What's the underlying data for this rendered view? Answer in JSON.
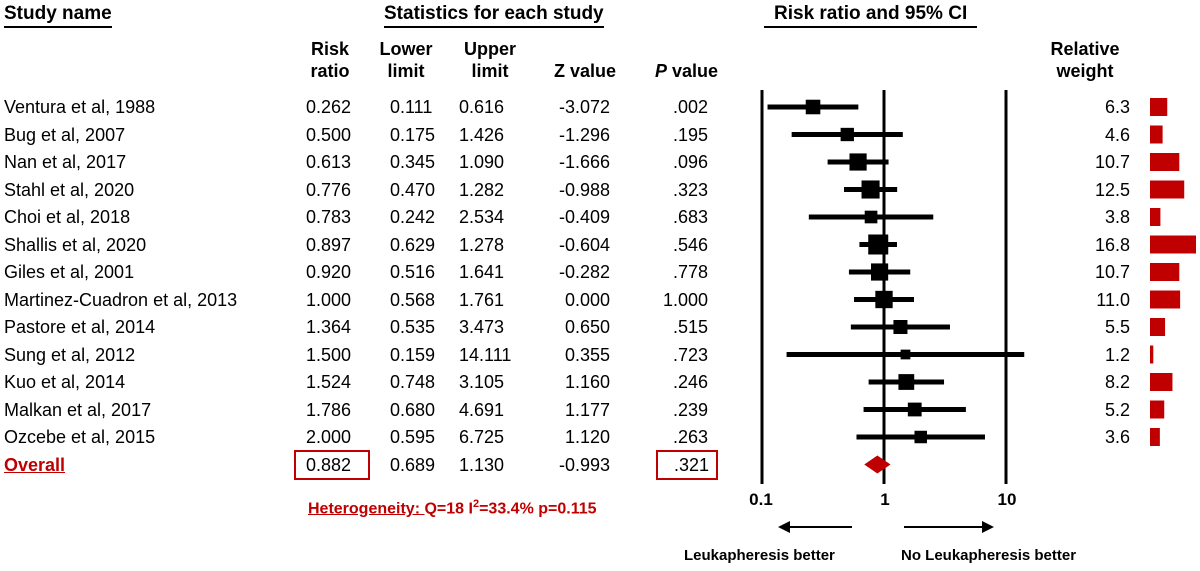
{
  "headers": {
    "study_name": "Study name",
    "statistics": "Statistics for each study",
    "forest": "Risk ratio and 95% CI",
    "rr": [
      "Risk",
      "ratio"
    ],
    "lower": [
      "Lower",
      "limit"
    ],
    "upper": [
      "Upper",
      "limit"
    ],
    "z": "Z value",
    "p": "P value",
    "weight": [
      "Relative",
      "weight"
    ]
  },
  "heterogeneity": {
    "prefix": "Heterogeneity: ",
    "q": "Q=18 I",
    "sup": "2",
    "rest": "=33.4% p=0.115"
  },
  "arrows": {
    "left": "Leukapheresis better",
    "right": "No Leukapheresis better"
  },
  "colors": {
    "overall": "#c00000",
    "weight_bar": "#c00000",
    "study_marker": "#000000"
  },
  "chart_data": {
    "type": "forest",
    "x_scale": "log",
    "xlim": [
      0.1,
      10
    ],
    "x_ticks": [
      "0.1",
      "1",
      "10"
    ],
    "reference_line": 1,
    "studies": [
      {
        "name": "Ventura et al, 1988",
        "rr": "0.262",
        "lower": "0.111",
        "upper": "0.616",
        "z": "-3.072",
        "p": ".002",
        "weight": "6.3"
      },
      {
        "name": "Bug et al, 2007",
        "rr": "0.500",
        "lower": "0.175",
        "upper": "1.426",
        "z": "-1.296",
        "p": ".195",
        "weight": "4.6"
      },
      {
        "name": "Nan et al, 2017",
        "rr": "0.613",
        "lower": "0.345",
        "upper": "1.090",
        "z": "-1.666",
        "p": ".096",
        "weight": "10.7"
      },
      {
        "name": "Stahl et al, 2020",
        "rr": "0.776",
        "lower": "0.470",
        "upper": "1.282",
        "z": "-0.988",
        "p": ".323",
        "weight": "12.5"
      },
      {
        "name": "Choi et al, 2018",
        "rr": "0.783",
        "lower": "0.242",
        "upper": "2.534",
        "z": "-0.409",
        "p": ".683",
        "weight": "3.8"
      },
      {
        "name": "Shallis et al, 2020",
        "rr": "0.897",
        "lower": "0.629",
        "upper": "1.278",
        "z": "-0.604",
        "p": ".546",
        "weight": "16.8"
      },
      {
        "name": "Giles et al, 2001",
        "rr": "0.920",
        "lower": "0.516",
        "upper": "1.641",
        "z": "-0.282",
        "p": ".778",
        "weight": "10.7"
      },
      {
        "name": "Martinez-Cuadron et al, 2013",
        "rr": "1.000",
        "lower": "0.568",
        "upper": "1.761",
        "z": "0.000",
        "p": "1.000",
        "weight": "11.0"
      },
      {
        "name": "Pastore et al, 2014",
        "rr": "1.364",
        "lower": "0.535",
        "upper": "3.473",
        "z": "0.650",
        "p": ".515",
        "weight": "5.5"
      },
      {
        "name": "Sung et al, 2012",
        "rr": "1.500",
        "lower": "0.159",
        "upper": "14.111",
        "z": "0.355",
        "p": ".723",
        "weight": "1.2"
      },
      {
        "name": "Kuo et al, 2014",
        "rr": "1.524",
        "lower": "0.748",
        "upper": "3.105",
        "z": "1.160",
        "p": ".246",
        "weight": "8.2"
      },
      {
        "name": "Malkan et al, 2017",
        "rr": "1.786",
        "lower": "0.680",
        "upper": "4.691",
        "z": "1.177",
        "p": ".239",
        "weight": "5.2"
      },
      {
        "name": "Ozcebe et al, 2015",
        "rr": "2.000",
        "lower": "0.595",
        "upper": "6.725",
        "z": "1.120",
        "p": ".263",
        "weight": "3.6"
      }
    ],
    "overall": {
      "name": "Overall",
      "rr": "0.882",
      "lower": "0.689",
      "upper": "1.130",
      "z": "-0.993",
      "p": ".321"
    }
  }
}
